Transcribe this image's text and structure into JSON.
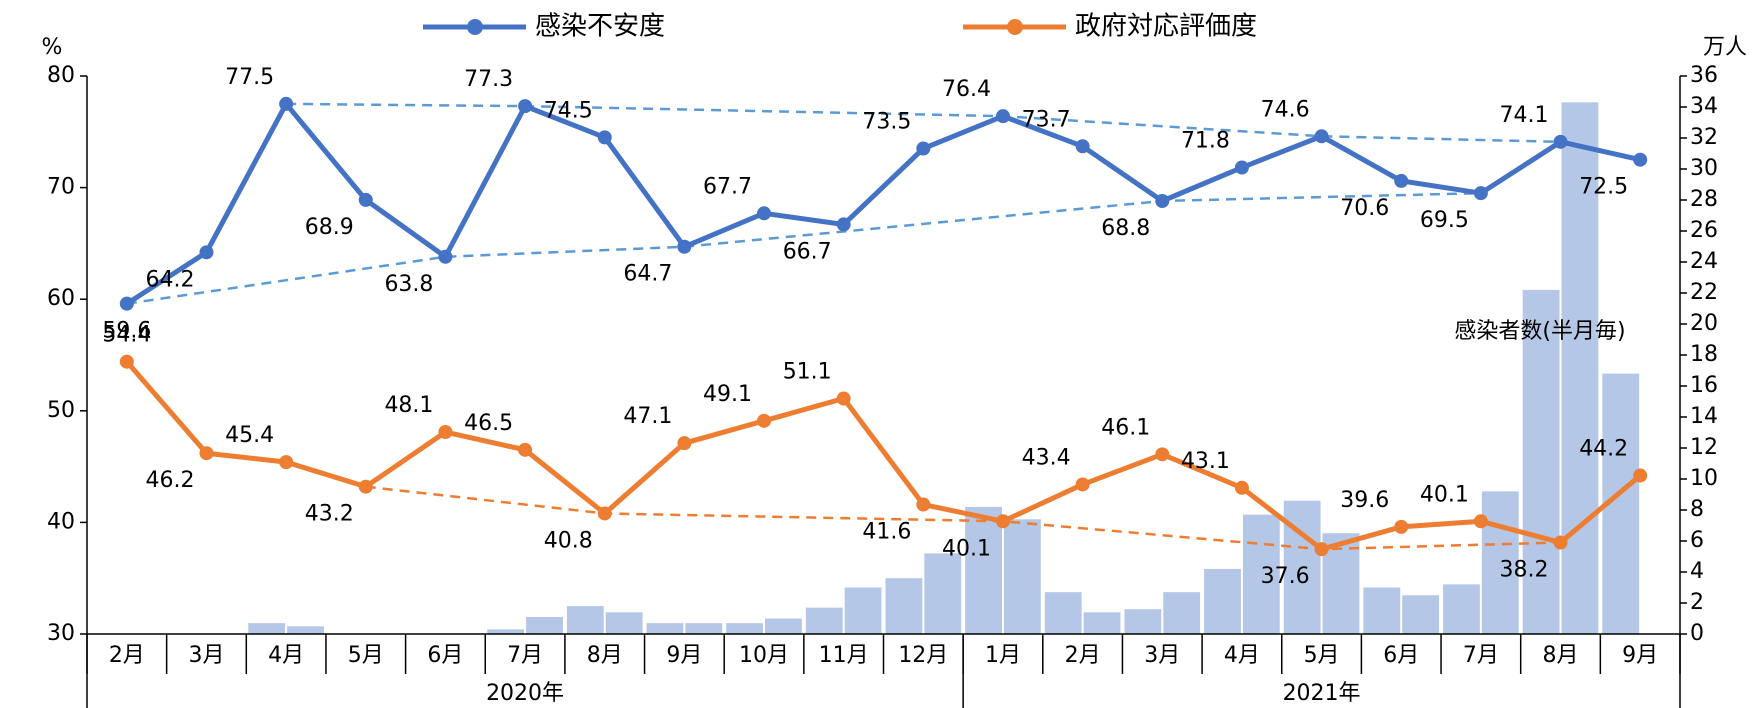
{
  "chart_data": {
    "type": "line",
    "categories": [
      "2月",
      "3月",
      "4月",
      "5月",
      "6月",
      "7月",
      "8月",
      "9月",
      "10月",
      "11月",
      "12月",
      "1月",
      "2月",
      "3月",
      "4月",
      "5月",
      "6月",
      "7月",
      "8月",
      "9月"
    ],
    "groups": [
      "2020年",
      "2021年"
    ],
    "y_label": "%",
    "y2_label": "万人",
    "ylim": [
      30,
      80
    ],
    "yticks": [
      30,
      40,
      50,
      60,
      70,
      80
    ],
    "y2lim": [
      0,
      36
    ],
    "y2ticks": [
      0,
      2,
      4,
      6,
      8,
      10,
      12,
      14,
      16,
      18,
      20,
      22,
      24,
      26,
      28,
      30,
      32,
      34,
      36
    ],
    "series": [
      {
        "name": "感染不安度",
        "color": "#4472c4",
        "values": [
          59.6,
          64.2,
          77.5,
          68.9,
          63.8,
          77.3,
          74.5,
          64.7,
          67.7,
          66.7,
          73.5,
          76.4,
          73.7,
          68.8,
          71.8,
          74.6,
          70.6,
          69.5,
          74.1,
          72.5
        ]
      },
      {
        "name": "政府対応評価度",
        "color": "#ed7d31",
        "values": [
          54.4,
          46.2,
          45.4,
          43.2,
          48.1,
          46.5,
          40.8,
          47.1,
          49.1,
          51.1,
          41.6,
          40.1,
          43.4,
          46.1,
          43.1,
          37.6,
          39.6,
          40.1,
          38.2,
          44.2
        ]
      },
      {
        "name": "感染者数(半月毎)",
        "type": "bar",
        "axis": "y2",
        "color": "#b4c7e7",
        "values": [
          [
            0,
            0
          ],
          [
            0,
            0
          ],
          [
            0.7,
            0.5
          ],
          [
            0,
            0
          ],
          [
            0,
            0
          ],
          [
            0.3,
            1.1
          ],
          [
            1.8,
            1.4
          ],
          [
            0.7,
            0.7
          ],
          [
            0.7,
            1.0
          ],
          [
            1.7,
            3.0
          ],
          [
            3.6,
            5.2
          ],
          [
            8.2,
            7.4
          ],
          [
            2.7,
            1.4
          ],
          [
            1.6,
            2.7
          ],
          [
            4.2,
            7.7
          ],
          [
            8.6,
            6.5
          ],
          [
            3.0,
            2.5
          ],
          [
            3.2,
            9.2
          ],
          [
            22.2,
            34.3
          ],
          [
            16.8,
            null
          ]
        ]
      }
    ]
  }
}
